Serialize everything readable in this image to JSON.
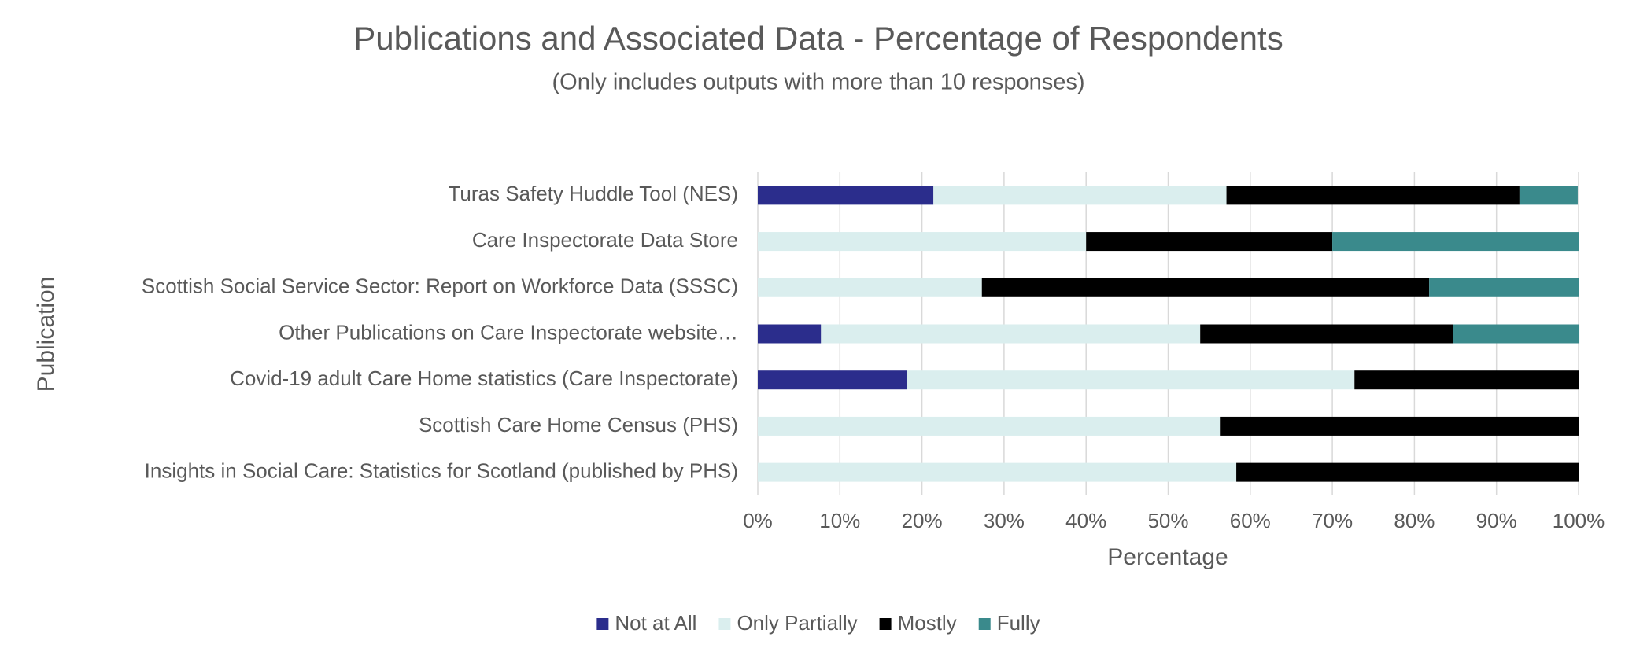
{
  "chart_data": {
    "type": "stacked-bar-horizontal",
    "title": "Publications and Associated Data - Percentage of Respondents",
    "subtitle": "(Only includes outputs with more than 10 responses)",
    "x_label": "Percentage",
    "y_label": "Publication",
    "categories": [
      "Turas Safety Huddle Tool (NES)",
      "Care Inspectorate Data Store",
      "Scottish Social Service Sector: Report on Workforce Data (SSSC)",
      "Other Publications on Care Inspectorate website…",
      "Covid-19 adult Care Home statistics (Care Inspectorate)",
      "Scottish Care Home Census (PHS)",
      "Insights in Social Care: Statistics for Scotland (published by PHS)"
    ],
    "series": [
      {
        "name": "Not at All",
        "color": "#2b2d8c",
        "values": [
          21.4,
          0,
          0,
          7.7,
          18.2,
          0,
          0
        ]
      },
      {
        "name": "Only Partially",
        "color": "#daeeee",
        "values": [
          35.7,
          40.0,
          27.3,
          46.2,
          54.5,
          56.3,
          58.3
        ]
      },
      {
        "name": "Mostly",
        "color": "#000000",
        "values": [
          35.7,
          30.0,
          54.5,
          30.8,
          27.3,
          43.7,
          41.7
        ]
      },
      {
        "name": "Fully",
        "color": "#3a8a8c",
        "values": [
          7.1,
          30.0,
          18.2,
          15.4,
          0,
          0,
          0
        ]
      }
    ],
    "xlim": [
      0,
      100
    ],
    "xticks": [
      {
        "value": 0,
        "label": "0%"
      },
      {
        "value": 10,
        "label": "10%"
      },
      {
        "value": 20,
        "label": "20%"
      },
      {
        "value": 30,
        "label": "30%"
      },
      {
        "value": 40,
        "label": "40%"
      },
      {
        "value": 50,
        "label": "50%"
      },
      {
        "value": 60,
        "label": "60%"
      },
      {
        "value": 70,
        "label": "70%"
      },
      {
        "value": 80,
        "label": "80%"
      },
      {
        "value": 90,
        "label": "90%"
      },
      {
        "value": 100,
        "label": "100%"
      }
    ],
    "grid": true,
    "legend": "bottom"
  }
}
